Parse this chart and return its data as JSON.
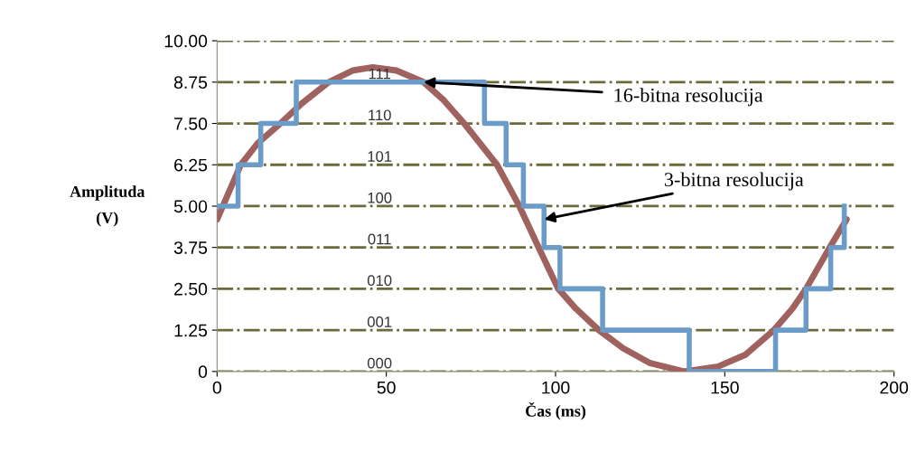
{
  "chart_data": {
    "type": "line",
    "xlabel": "Čas (ms)",
    "ylabel": "Amplituda\n(V)",
    "xlim": [
      0,
      200
    ],
    "xticks": [
      0,
      50,
      100,
      150,
      200
    ],
    "ylim": [
      0,
      10
    ],
    "yticks": [
      0,
      1.25,
      {
        "value": 2.5,
        "label": "2.50"
      },
      3.75,
      {
        "value": 5,
        "label": "5.00"
      },
      6.25,
      {
        "value": 7.5,
        "label": "7.50"
      },
      8.75,
      {
        "value": 10,
        "label": "10.00"
      }
    ],
    "grid": "y",
    "line_style": "solid",
    "marker": "none",
    "series": [
      {
        "color": "#a0625e",
        "x": [
          0,
          7,
          12,
          18.7,
          25,
          33,
          40,
          46,
          53,
          61,
          67,
          73,
          82.7,
          89.3,
          95,
          100.8,
          106,
          112.8,
          120,
          128,
          138,
          148,
          156,
          164.5,
          170,
          174,
          181,
          186
        ],
        "values": [
          4.6,
          6.25,
          6.9,
          7.5,
          8.1,
          8.75,
          9.1,
          9.2,
          9.1,
          8.75,
          8.2,
          7.5,
          6.25,
          5.0,
          3.75,
          2.5,
          1.9,
          1.25,
          0.7,
          0.25,
          0,
          0.15,
          0.5,
          1.25,
          1.9,
          2.5,
          3.75,
          4.6
        ]
      },
      {
        "type": "step",
        "color": "#6b9bc8",
        "x": [
          0,
          6.2,
          12.9,
          23.4,
          79,
          85.4,
          90.5,
          96.6,
          101.3,
          113.9,
          139.5,
          165,
          174,
          181.3,
          185.3
        ],
        "values": [
          5,
          6.25,
          7.5,
          8.75,
          7.5,
          6.25,
          5,
          3.75,
          2.5,
          1.25,
          0,
          1.25,
          2.5,
          3.75,
          5
        ]
      }
    ],
    "annotations": [
      "111",
      "110",
      "101",
      "100",
      "011",
      "010",
      "001",
      "000",
      {
        "text": "16-bitna resolucija",
        "x": 61,
        "y": 8.75
      },
      {
        "text": "3-bitna resolucija",
        "x": 96.6,
        "y": 4.6
      }
    ]
  }
}
